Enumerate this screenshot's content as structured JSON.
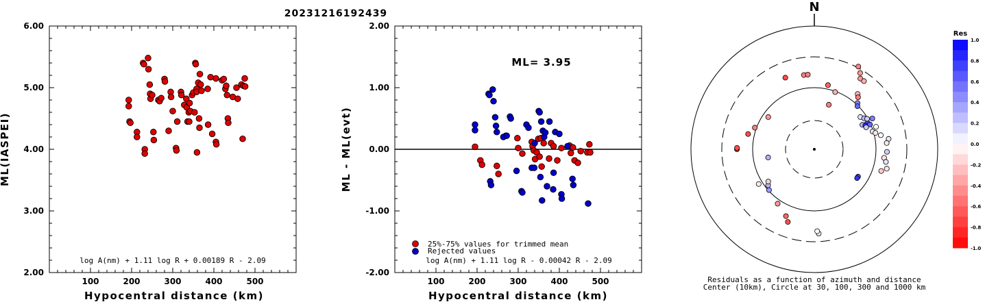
{
  "title": "20231216192439",
  "chart_data": [
    {
      "type": "scatter",
      "ylabel": "ML(IASPEI)",
      "xlabel": "Hypocentral distance (km)",
      "xlim": [
        0,
        600
      ],
      "ylim": [
        2.0,
        6.0
      ],
      "xticks": [
        "100",
        "200",
        "300",
        "400",
        "500"
      ],
      "yticks": [
        "2.00",
        "3.00",
        "4.00",
        "5.00",
        "6.00"
      ],
      "formula": "log A(nm) + 1.11 log R + 0.00189 R - 2.09",
      "point_color": "#e00000",
      "points": [
        [
          193,
          4.8
        ],
        [
          193,
          4.7
        ],
        [
          195,
          4.45
        ],
        [
          197,
          4.43
        ],
        [
          213,
          4.28
        ],
        [
          213,
          4.2
        ],
        [
          228,
          5.4
        ],
        [
          230,
          5.38
        ],
        [
          232,
          4.0
        ],
        [
          232,
          3.93
        ],
        [
          240,
          5.48
        ],
        [
          241,
          5.3
        ],
        [
          244,
          5.05
        ],
        [
          245,
          4.9
        ],
        [
          246,
          4.82
        ],
        [
          250,
          4.88
        ],
        [
          253,
          4.28
        ],
        [
          254,
          4.15
        ],
        [
          265,
          4.8
        ],
        [
          268,
          4.78
        ],
        [
          272,
          4.83
        ],
        [
          280,
          5.14
        ],
        [
          281,
          5.1
        ],
        [
          290,
          4.3
        ],
        [
          295,
          4.93
        ],
        [
          296,
          4.85
        ],
        [
          300,
          4.62
        ],
        [
          308,
          4.02
        ],
        [
          309,
          3.98
        ],
        [
          311,
          4.45
        ],
        [
          320,
          4.93
        ],
        [
          321,
          4.88
        ],
        [
          328,
          4.72
        ],
        [
          333,
          4.82
        ],
        [
          334,
          4.68
        ],
        [
          336,
          4.45
        ],
        [
          339,
          4.6
        ],
        [
          340,
          4.45
        ],
        [
          341,
          4.75
        ],
        [
          343,
          4.62
        ],
        [
          347,
          4.88
        ],
        [
          350,
          4.92
        ],
        [
          353,
          4.6
        ],
        [
          355,
          5.4
        ],
        [
          356,
          5.38
        ],
        [
          358,
          4.98
        ],
        [
          358,
          4.93
        ],
        [
          359,
          3.95
        ],
        [
          362,
          5.08
        ],
        [
          364,
          4.5
        ],
        [
          365,
          4.35
        ],
        [
          366,
          5.22
        ],
        [
          368,
          5.05
        ],
        [
          370,
          4.95
        ],
        [
          385,
          4.98
        ],
        [
          386,
          4.4
        ],
        [
          392,
          5.17
        ],
        [
          396,
          4.25
        ],
        [
          405,
          5.15
        ],
        [
          405,
          4.12
        ],
        [
          406,
          4.08
        ],
        [
          420,
          5.12
        ],
        [
          424,
          5.14
        ],
        [
          428,
          4.98
        ],
        [
          430,
          5.03
        ],
        [
          432,
          4.88
        ],
        [
          434,
          4.5
        ],
        [
          435,
          4.43
        ],
        [
          446,
          4.85
        ],
        [
          455,
          5.0
        ],
        [
          458,
          4.82
        ],
        [
          467,
          5.05
        ],
        [
          470,
          4.17
        ],
        [
          472,
          5.03
        ],
        [
          475,
          5.15
        ],
        [
          476,
          5.02
        ]
      ]
    },
    {
      "type": "scatter",
      "ylabel": "ML - ML(evt)",
      "xlabel": "Hypocentral distance (km)",
      "xlim": [
        0,
        600
      ],
      "ylim": [
        -2.0,
        2.0
      ],
      "xticks": [
        "100",
        "200",
        "300",
        "400",
        "500"
      ],
      "yticks": [
        "-2.00",
        "-1.00",
        "0.00",
        "1.00",
        "2.00"
      ],
      "annotation": "ML= 3.95",
      "formula": "log A(nm) + 1.11 log R - 0.00042 R - 2.09",
      "legend": [
        {
          "label": "25%-75% values for trimmed mean",
          "color": "#e00000"
        },
        {
          "label": "Rejected values",
          "color": "#0000cc"
        }
      ],
      "series": [
        {
          "name": "25%-75% values for trimmed mean",
          "color": "#e00000",
          "points": [
            [
              195,
              0.04
            ],
            [
              208,
              -0.18
            ],
            [
              212,
              -0.25
            ],
            [
              248,
              -0.27
            ],
            [
              252,
              -0.4
            ],
            [
              270,
              0.22
            ],
            [
              298,
              0.18
            ],
            [
              300,
              0.02
            ],
            [
              310,
              -0.07
            ],
            [
              333,
              0.12
            ],
            [
              335,
              0.05
            ],
            [
              338,
              -0.02
            ],
            [
              341,
              -0.16
            ],
            [
              345,
              -0.05
            ],
            [
              349,
              0.17
            ],
            [
              352,
              -0.12
            ],
            [
              355,
              0.18
            ],
            [
              357,
              -0.28
            ],
            [
              362,
              0.1
            ],
            [
              375,
              -0.15
            ],
            [
              380,
              0.1
            ],
            [
              386,
              0.05
            ],
            [
              395,
              -0.18
            ],
            [
              405,
              0.02
            ],
            [
              425,
              0.06
            ],
            [
              428,
              -0.06
            ],
            [
              433,
              0.03
            ],
            [
              437,
              -0.18
            ],
            [
              445,
              -0.22
            ],
            [
              452,
              -0.03
            ],
            [
              468,
              -0.05
            ],
            [
              473,
              0.08
            ],
            [
              475,
              -0.05
            ]
          ]
        },
        {
          "name": "Rejected values",
          "color": "#0000cc",
          "points": [
            [
              195,
              0.4
            ],
            [
              195,
              0.31
            ],
            [
              228,
              0.9
            ],
            [
              230,
              0.88
            ],
            [
              238,
              0.97
            ],
            [
              240,
              0.78
            ],
            [
              244,
              0.52
            ],
            [
              246,
              0.38
            ],
            [
              248,
              0.28
            ],
            [
              232,
              -0.52
            ],
            [
              234,
              -0.58
            ],
            [
              264,
              0.2
            ],
            [
              272,
              0.22
            ],
            [
              280,
              0.53
            ],
            [
              282,
              0.5
            ],
            [
              296,
              -0.35
            ],
            [
              308,
              -0.68
            ],
            [
              310,
              -0.7
            ],
            [
              320,
              0.4
            ],
            [
              325,
              0.35
            ],
            [
              333,
              -0.3
            ],
            [
              339,
              -0.3
            ],
            [
              340,
              0.1
            ],
            [
              350,
              0.62
            ],
            [
              352,
              0.6
            ],
            [
              354,
              -0.45
            ],
            [
              356,
              0.45
            ],
            [
              358,
              -0.83
            ],
            [
              360,
              0.3
            ],
            [
              363,
              0.2
            ],
            [
              366,
              0.27
            ],
            [
              370,
              -0.6
            ],
            [
              376,
              0.45
            ],
            [
              385,
              -0.65
            ],
            [
              386,
              -0.38
            ],
            [
              390,
              0.28
            ],
            [
              400,
              0.25
            ],
            [
              405,
              -0.73
            ],
            [
              406,
              -0.8
            ],
            [
              420,
              0.05
            ],
            [
              432,
              -0.48
            ],
            [
              434,
              -0.58
            ],
            [
              470,
              -0.88
            ]
          ]
        }
      ]
    },
    {
      "type": "scatter",
      "subtype": "polar",
      "north_label": "N",
      "caption": [
        "Residuals as a function of azimuth and distance",
        "Center (10km), Circle at 30, 100, 300 and 1000 km"
      ],
      "colorbar_title": "Res",
      "colorbar_ticks": [
        "1.0",
        "0.8",
        "0.6",
        "0.4",
        "0.2",
        "0.0",
        "-0.2",
        "-0.4",
        "-0.6",
        "-0.8",
        "-1.0"
      ],
      "points": [
        [
          12,
          0.28,
          -0.6
        ],
        [
          18,
          0.2,
          -0.5
        ],
        [
          20,
          0.26,
          -0.3
        ],
        [
          28,
          0.4,
          -0.5
        ],
        [
          31,
          0.38,
          -0.4
        ],
        [
          33,
          0.36,
          -0.4
        ],
        [
          36,
          0.36,
          -0.3
        ],
        [
          38,
          0.3,
          -0.3
        ],
        [
          40,
          0.29,
          -0.5
        ],
        [
          43,
          0.27,
          0.5
        ],
        [
          45,
          0.26,
          0.6
        ],
        [
          55,
          0.24,
          0.1
        ],
        [
          58,
          0.25,
          0.3
        ],
        [
          60,
          0.26,
          0.2
        ],
        [
          62,
          0.28,
          0.5
        ],
        [
          63,
          0.23,
          0.3
        ],
        [
          64,
          0.25,
          0.7
        ],
        [
          65,
          0.24,
          0.8
        ],
        [
          66,
          0.26,
          0.6
        ],
        [
          67,
          0.24,
          0.2
        ],
        [
          70,
          0.28,
          0.0
        ],
        [
          73,
          0.26,
          0.1
        ],
        [
          75,
          0.27,
          -0.1
        ],
        [
          78,
          0.29,
          0.0
        ],
        [
          82,
          0.32,
          0.1
        ],
        [
          85,
          0.31,
          -0.1
        ],
        [
          92,
          0.31,
          0.2
        ],
        [
          97,
          0.3,
          -0.1
        ],
        [
          100,
          0.31,
          0.1
        ],
        [
          105,
          0.32,
          -0.1
        ],
        [
          108,
          0.3,
          -0.2
        ],
        [
          122,
          0.22,
          0.7
        ],
        [
          124,
          0.22,
          0.8
        ],
        [
          177,
          0.36,
          -0.1
        ],
        [
          178,
          0.35,
          0.0
        ],
        [
          200,
          0.33,
          -0.7
        ],
        [
          203,
          0.31,
          -0.6
        ],
        [
          214,
          0.28,
          -0.4
        ],
        [
          228,
          0.26,
          0.4
        ],
        [
          232,
          0.25,
          0.3
        ],
        [
          235,
          0.24,
          -0.2
        ],
        [
          238,
          0.28,
          -0.1
        ],
        [
          260,
          0.2,
          0.3
        ],
        [
          270,
          0.33,
          -0.8
        ],
        [
          271,
          0.33,
          -0.7
        ],
        [
          283,
          0.29,
          -0.7
        ],
        [
          290,
          0.27,
          -0.5
        ],
        [
          305,
          0.24,
          -0.4
        ],
        [
          338,
          0.33,
          -0.7
        ],
        [
          352,
          0.32,
          -0.5
        ],
        [
          355,
          0.32,
          -0.5
        ]
      ]
    }
  ]
}
